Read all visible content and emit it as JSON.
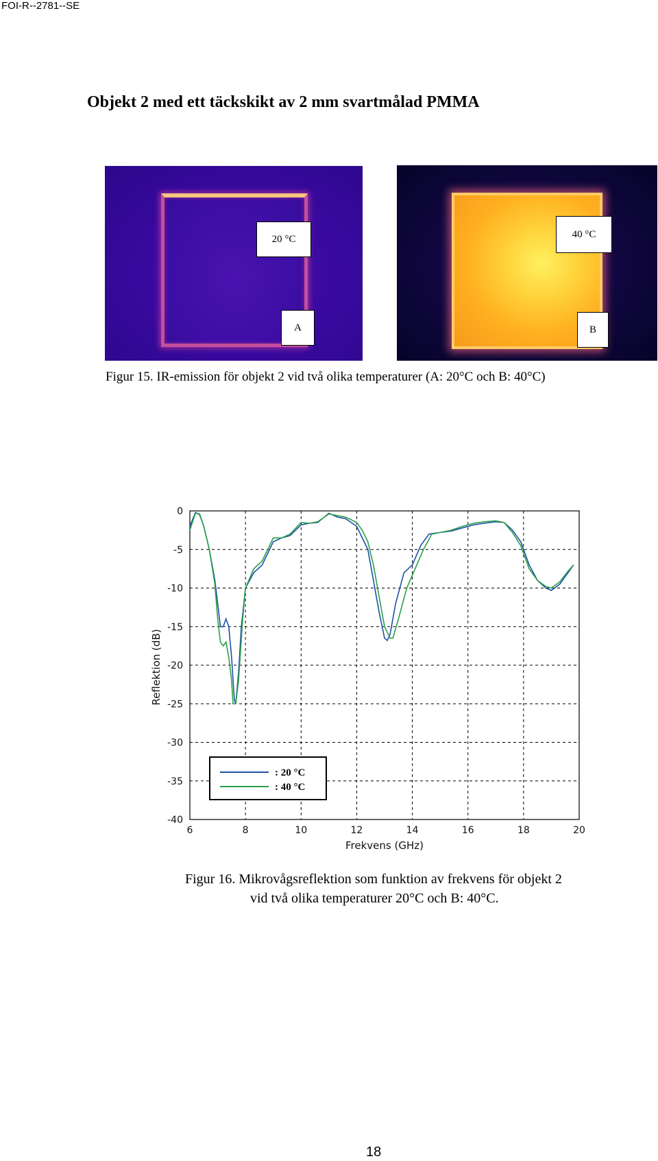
{
  "header": {
    "doc_id": "FOI-R--2781--SE"
  },
  "heading": "Objekt 2 med ett täckskikt av 2 mm svartmålad PMMA",
  "figure15": {
    "image_a": {
      "temp_label": "20 °C",
      "letter": "A"
    },
    "image_b": {
      "temp_label": "40 °C",
      "letter": "B"
    },
    "caption": "Figur 15.  IR-emission för objekt 2 vid två olika temperaturer (A: 20°C och B: 40°C)"
  },
  "figure16": {
    "caption_line1": "Figur 16.  Mikrovågsreflektion som funktion av frekvens för objekt 2",
    "caption_line2": "vid två olika temperaturer 20°C och B: 40°C."
  },
  "chart_data": {
    "type": "line",
    "title": "",
    "xlabel": "Frekvens (GHz)",
    "ylabel": "Reflektion (dB)",
    "xlim": [
      6,
      20
    ],
    "ylim": [
      -40,
      0
    ],
    "xticks": [
      6,
      8,
      10,
      12,
      14,
      16,
      18,
      20
    ],
    "yticks": [
      0,
      -5,
      -10,
      -15,
      -20,
      -25,
      -30,
      -35,
      -40
    ],
    "grid": true,
    "legend_position": "bottom-left",
    "series": [
      {
        "name": ": 20 °C",
        "color": "#1f4fa8",
        "x": [
          6.0,
          6.2,
          6.35,
          6.5,
          6.7,
          6.9,
          7.0,
          7.1,
          7.2,
          7.3,
          7.4,
          7.5,
          7.6,
          7.65,
          7.75,
          7.85,
          8.0,
          8.3,
          8.6,
          9.0,
          9.3,
          9.6,
          10.0,
          10.3,
          10.6,
          11.0,
          11.3,
          11.6,
          12.0,
          12.2,
          12.4,
          12.6,
          12.8,
          13.0,
          13.1,
          13.2,
          13.4,
          13.7,
          14.0,
          14.3,
          14.6,
          15.0,
          15.4,
          15.8,
          16.2,
          16.6,
          17.0,
          17.3,
          17.6,
          17.9,
          18.2,
          18.5,
          18.8,
          19.0,
          19.3,
          19.6,
          19.8
        ],
        "y": [
          -2.0,
          -0.2,
          -0.5,
          -2.0,
          -5.0,
          -9.0,
          -12.0,
          -15.0,
          -15.0,
          -14.0,
          -15.0,
          -19.0,
          -24.5,
          -25.0,
          -21.0,
          -15.0,
          -10.0,
          -8.0,
          -7.0,
          -4.0,
          -3.5,
          -3.2,
          -1.8,
          -1.6,
          -1.5,
          -0.3,
          -0.8,
          -1.0,
          -2.0,
          -3.5,
          -5.0,
          -9.0,
          -13.0,
          -16.5,
          -16.8,
          -16.0,
          -12.0,
          -8.0,
          -7.0,
          -4.5,
          -3.0,
          -2.8,
          -2.6,
          -2.2,
          -1.8,
          -1.6,
          -1.4,
          -1.5,
          -2.5,
          -4.0,
          -7.0,
          -9.0,
          -10.0,
          -10.3,
          -9.5,
          -8.0,
          -7.0
        ]
      },
      {
        "name": ": 40 °C",
        "color": "#2aa048",
        "x": [
          6.0,
          6.2,
          6.35,
          6.5,
          6.7,
          6.9,
          7.0,
          7.1,
          7.2,
          7.3,
          7.4,
          7.5,
          7.55,
          7.65,
          7.75,
          7.9,
          8.0,
          8.3,
          8.6,
          9.0,
          9.3,
          9.6,
          10.0,
          10.3,
          10.6,
          11.0,
          11.3,
          11.6,
          12.0,
          12.2,
          12.4,
          12.6,
          12.8,
          13.0,
          13.2,
          13.3,
          13.5,
          13.8,
          14.1,
          14.4,
          14.7,
          15.0,
          15.4,
          15.8,
          16.2,
          16.6,
          17.0,
          17.3,
          17.6,
          17.9,
          18.2,
          18.5,
          18.8,
          19.0,
          19.3,
          19.6,
          19.8
        ],
        "y": [
          -2.5,
          -0.3,
          -0.4,
          -2.0,
          -5.0,
          -9.5,
          -14.0,
          -17.0,
          -17.5,
          -17.0,
          -19.0,
          -22.0,
          -25.0,
          -25.0,
          -22.0,
          -14.0,
          -10.0,
          -7.5,
          -6.5,
          -3.5,
          -3.5,
          -3.0,
          -1.5,
          -1.6,
          -1.4,
          -0.4,
          -0.6,
          -0.8,
          -1.5,
          -2.5,
          -4.0,
          -7.0,
          -11.0,
          -15.0,
          -16.5,
          -16.5,
          -14.0,
          -10.0,
          -7.5,
          -5.0,
          -3.0,
          -2.8,
          -2.5,
          -2.0,
          -1.6,
          -1.4,
          -1.3,
          -1.5,
          -2.8,
          -4.5,
          -7.5,
          -9.0,
          -9.8,
          -10.0,
          -9.2,
          -7.8,
          -7.0
        ]
      }
    ]
  },
  "footer": {
    "page_number": "18"
  }
}
